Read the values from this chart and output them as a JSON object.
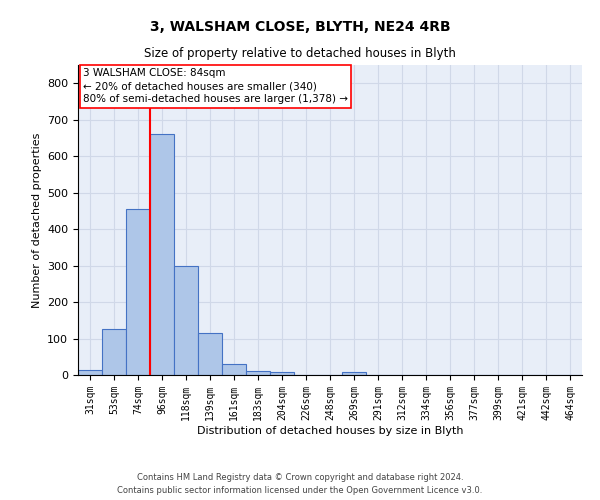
{
  "title": "3, WALSHAM CLOSE, BLYTH, NE24 4RB",
  "subtitle": "Size of property relative to detached houses in Blyth",
  "xlabel": "Distribution of detached houses by size in Blyth",
  "ylabel": "Number of detached properties",
  "footer_line1": "Contains HM Land Registry data © Crown copyright and database right 2024.",
  "footer_line2": "Contains public sector information licensed under the Open Government Licence v3.0.",
  "bar_labels": [
    "31sqm",
    "53sqm",
    "74sqm",
    "96sqm",
    "118sqm",
    "139sqm",
    "161sqm",
    "183sqm",
    "204sqm",
    "226sqm",
    "248sqm",
    "269sqm",
    "291sqm",
    "312sqm",
    "334sqm",
    "356sqm",
    "377sqm",
    "399sqm",
    "421sqm",
    "442sqm",
    "464sqm"
  ],
  "bar_values": [
    15,
    125,
    455,
    660,
    300,
    115,
    30,
    12,
    8,
    0,
    0,
    8,
    0,
    0,
    0,
    0,
    0,
    0,
    0,
    0,
    0
  ],
  "bar_color": "#aec6e8",
  "bar_edge_color": "#4472c4",
  "vline_x": 2.5,
  "vline_color": "red",
  "annotation_title": "3 WALSHAM CLOSE: 84sqm",
  "annotation_line1": "← 20% of detached houses are smaller (340)",
  "annotation_line2": "80% of semi-detached houses are larger (1,378) →",
  "ylim": [
    0,
    850
  ],
  "yticks": [
    0,
    100,
    200,
    300,
    400,
    500,
    600,
    700,
    800
  ],
  "grid_color": "#d0d8e8",
  "background_color": "#e8eef8",
  "title_fontsize": 10,
  "subtitle_fontsize": 8.5,
  "ylabel_fontsize": 8,
  "xlabel_fontsize": 8,
  "tick_fontsize": 8,
  "xtick_fontsize": 7,
  "footer_fontsize": 6,
  "annot_fontsize": 7.5
}
